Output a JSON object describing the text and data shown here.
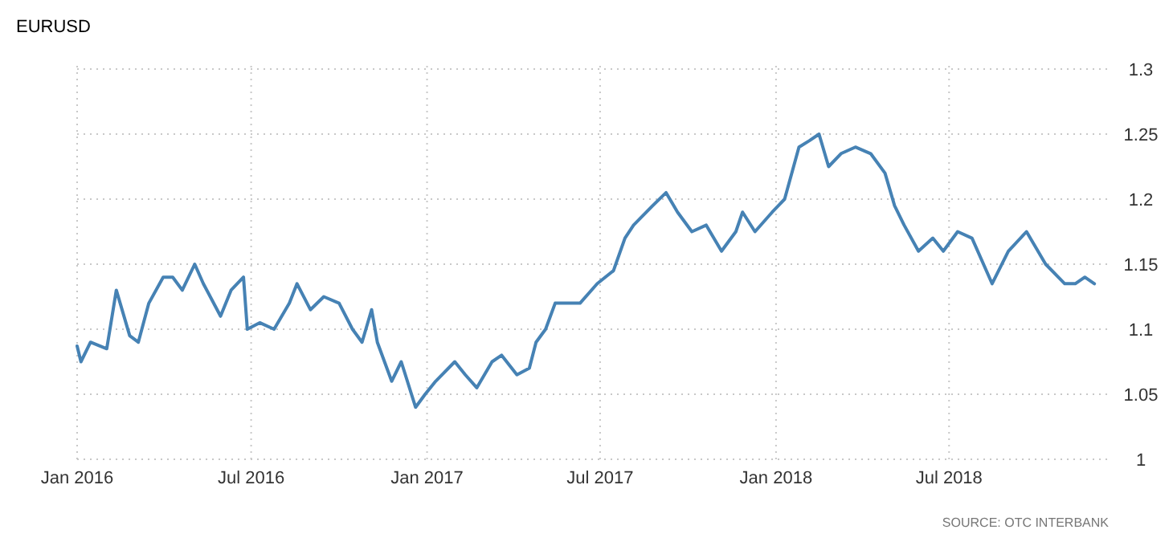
{
  "chart_data": {
    "type": "line",
    "title": "EURUSD",
    "annotations": [
      "SOURCE: OTC INTERBANK"
    ],
    "x": [
      "2016-01-01",
      "2016-01-05",
      "2016-01-15",
      "2016-02-01",
      "2016-02-11",
      "2016-02-25",
      "2016-03-05",
      "2016-03-16",
      "2016-03-31",
      "2016-04-10",
      "2016-04-20",
      "2016-05-03",
      "2016-05-12",
      "2016-05-30",
      "2016-06-10",
      "2016-06-23",
      "2016-06-27",
      "2016-07-10",
      "2016-07-25",
      "2016-08-10",
      "2016-08-18",
      "2016-09-01",
      "2016-09-15",
      "2016-10-01",
      "2016-10-15",
      "2016-10-25",
      "2016-11-04",
      "2016-11-10",
      "2016-11-25",
      "2016-12-05",
      "2016-12-20",
      "2016-12-30",
      "2017-01-10",
      "2017-01-30",
      "2017-02-10",
      "2017-02-22",
      "2017-03-10",
      "2017-03-20",
      "2017-04-05",
      "2017-04-18",
      "2017-04-25",
      "2017-05-05",
      "2017-05-15",
      "2017-05-25",
      "2017-06-10",
      "2017-06-28",
      "2017-07-15",
      "2017-07-27",
      "2017-08-05",
      "2017-08-25",
      "2017-09-08",
      "2017-09-20",
      "2017-10-05",
      "2017-10-20",
      "2017-11-05",
      "2017-11-20",
      "2017-11-27",
      "2017-12-10",
      "2017-12-28",
      "2018-01-10",
      "2018-01-25",
      "2018-02-05",
      "2018-02-15",
      "2018-02-25",
      "2018-03-10",
      "2018-03-25",
      "2018-04-10",
      "2018-04-25",
      "2018-05-05",
      "2018-05-15",
      "2018-05-30",
      "2018-06-14",
      "2018-06-25",
      "2018-07-10",
      "2018-07-25",
      "2018-08-15",
      "2018-09-01",
      "2018-09-20",
      "2018-10-10",
      "2018-10-30",
      "2018-11-10",
      "2018-11-20",
      "2018-11-30"
    ],
    "series": [
      {
        "color": "#4682b4",
        "values": [
          1.087,
          1.075,
          1.09,
          1.085,
          1.13,
          1.095,
          1.09,
          1.12,
          1.14,
          1.14,
          1.13,
          1.15,
          1.135,
          1.11,
          1.13,
          1.14,
          1.1,
          1.105,
          1.1,
          1.12,
          1.135,
          1.115,
          1.125,
          1.12,
          1.1,
          1.09,
          1.115,
          1.09,
          1.06,
          1.075,
          1.04,
          1.05,
          1.06,
          1.075,
          1.065,
          1.055,
          1.075,
          1.08,
          1.065,
          1.07,
          1.09,
          1.1,
          1.12,
          1.12,
          1.12,
          1.135,
          1.145,
          1.17,
          1.18,
          1.195,
          1.205,
          1.19,
          1.175,
          1.18,
          1.16,
          1.175,
          1.19,
          1.175,
          1.19,
          1.2,
          1.24,
          1.245,
          1.25,
          1.225,
          1.235,
          1.24,
          1.235,
          1.22,
          1.195,
          1.18,
          1.16,
          1.17,
          1.16,
          1.175,
          1.17,
          1.135,
          1.16,
          1.175,
          1.15,
          1.135,
          1.135,
          1.14,
          1.135
        ]
      }
    ],
    "xlim": [
      "2016-01-01",
      "2018-12-15"
    ],
    "xticks": [
      {
        "value": "2016-01-01",
        "label": "Jan 2016"
      },
      {
        "value": "2016-07-01",
        "label": "Jul 2016"
      },
      {
        "value": "2017-01-01",
        "label": "Jan 2017"
      },
      {
        "value": "2017-07-01",
        "label": "Jul 2017"
      },
      {
        "value": "2018-01-01",
        "label": "Jan 2018"
      },
      {
        "value": "2018-07-01",
        "label": "Jul 2018"
      }
    ],
    "ylim": [
      1,
      1.3
    ],
    "yticks": [
      1,
      1.05,
      1.1,
      1.15,
      1.2,
      1.25,
      1.3
    ],
    "grid": true,
    "line_style": "solid",
    "marker": "none"
  }
}
